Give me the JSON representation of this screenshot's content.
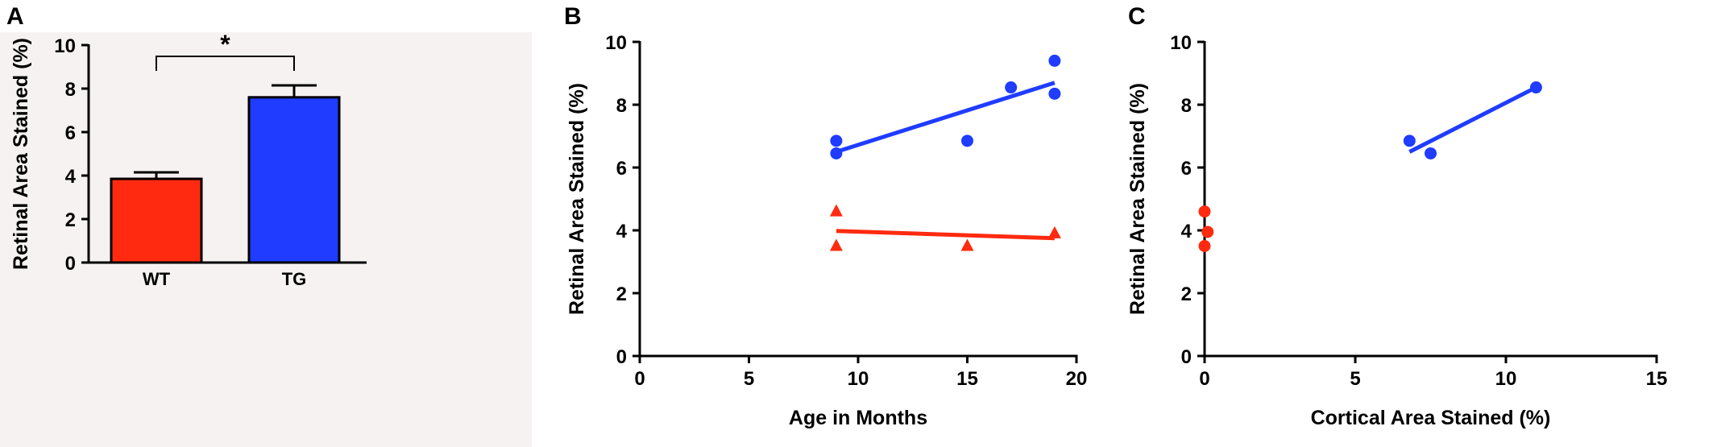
{
  "colors": {
    "wt": "#ff2a0f",
    "tg": "#1f3cff",
    "axis": "#000000",
    "panel_bg": "#f7f2f2"
  },
  "chart_data": [
    {
      "panel_label": "A",
      "type": "bar",
      "categories": [
        "WT",
        "TG"
      ],
      "values": [
        3.85,
        7.6
      ],
      "errors": [
        0.3,
        0.55
      ],
      "ylabel": "Retinal Area Stained (%)",
      "xlabel": "",
      "ylim": [
        0,
        10
      ],
      "yticks": [
        "0",
        "2",
        "4",
        "6",
        "8",
        "10"
      ],
      "significance": "*"
    },
    {
      "panel_label": "B",
      "type": "scatter",
      "xlabel": "Age in Months",
      "ylabel": "Retinal Area Stained (%)",
      "xlim": [
        0,
        20
      ],
      "ylim": [
        0,
        10
      ],
      "xticks": [
        "0",
        "5",
        "10",
        "15",
        "20"
      ],
      "yticks": [
        "0",
        "2",
        "4",
        "6",
        "8",
        "10"
      ],
      "series": [
        {
          "marker": "circle",
          "color": "#1f3cff",
          "points": [
            [
              9,
              6.85
            ],
            [
              9,
              6.45
            ],
            [
              15,
              6.85
            ],
            [
              17,
              8.55
            ],
            [
              19,
              9.4
            ],
            [
              19,
              8.35
            ]
          ],
          "fit": [
            [
              9,
              6.5
            ],
            [
              19,
              8.7
            ]
          ]
        },
        {
          "marker": "triangle",
          "color": "#ff2a0f",
          "points": [
            [
              9,
              4.6
            ],
            [
              9,
              3.5
            ],
            [
              15,
              3.5
            ],
            [
              19,
              3.9
            ]
          ],
          "fit": [
            [
              9,
              3.98
            ],
            [
              19,
              3.75
            ]
          ]
        }
      ]
    },
    {
      "panel_label": "C",
      "type": "scatter",
      "xlabel": "Cortical Area Stained (%)",
      "ylabel": "Retinal Area Stained (%)",
      "xlim": [
        0,
        15
      ],
      "ylim": [
        0,
        10
      ],
      "xticks": [
        "0",
        "5",
        "10",
        "15"
      ],
      "yticks": [
        "0",
        "2",
        "4",
        "6",
        "8",
        "10"
      ],
      "series": [
        {
          "marker": "circle",
          "color": "#1f3cff",
          "points": [
            [
              6.8,
              6.85
            ],
            [
              7.5,
              6.45
            ],
            [
              11,
              8.55
            ]
          ],
          "fit": [
            [
              6.8,
              6.5
            ],
            [
              11,
              8.55
            ]
          ]
        },
        {
          "marker": "circle",
          "color": "#ff2a0f",
          "points": [
            [
              0,
              4.6
            ],
            [
              0.1,
              3.95
            ],
            [
              0,
              3.5
            ]
          ],
          "fit": null
        }
      ]
    }
  ]
}
